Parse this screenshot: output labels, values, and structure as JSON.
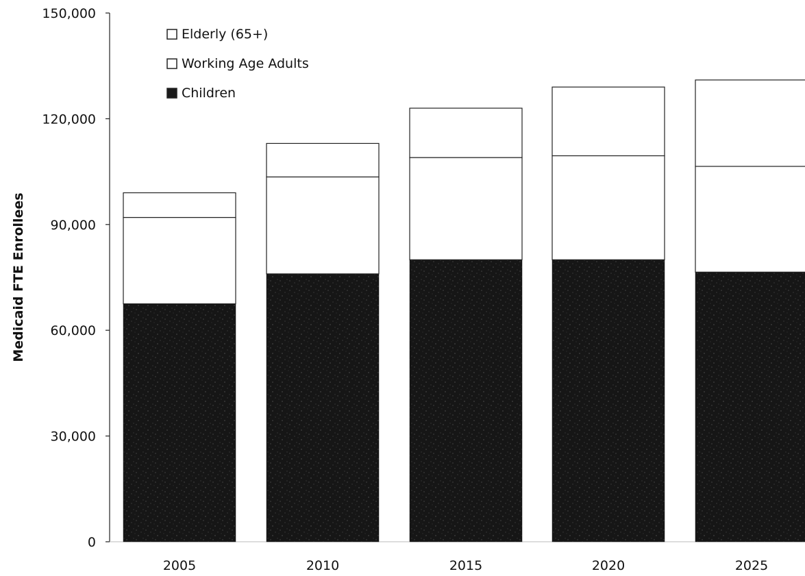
{
  "chart_data": {
    "type": "bar",
    "stacked": true,
    "title": "",
    "xlabel": "",
    "ylabel": "Medicaid FTE Enrollees",
    "ylim": [
      0,
      150000
    ],
    "yticks": [
      0,
      30000,
      60000,
      90000,
      120000,
      150000
    ],
    "ytick_labels": [
      "0",
      "30,000",
      "60,000",
      "90,000",
      "120,000",
      "150,000"
    ],
    "categories": [
      "2005",
      "2010",
      "2015",
      "2020",
      "2025"
    ],
    "series": [
      {
        "name": "Children",
        "values": [
          67500,
          76000,
          80000,
          80000,
          76500
        ],
        "color": "#151515"
      },
      {
        "name": "Working Age Adults",
        "values": [
          24500,
          27500,
          29000,
          29500,
          30000
        ],
        "color": "#ffffff"
      },
      {
        "name": "Elderly (65+)",
        "values": [
          7000,
          9500,
          14000,
          19500,
          24500
        ],
        "color": "#ffffff"
      }
    ],
    "legend": {
      "position": "top-left",
      "entries": [
        "Elderly (65+)",
        "Working Age Adults",
        "Children"
      ]
    },
    "grid": false
  }
}
